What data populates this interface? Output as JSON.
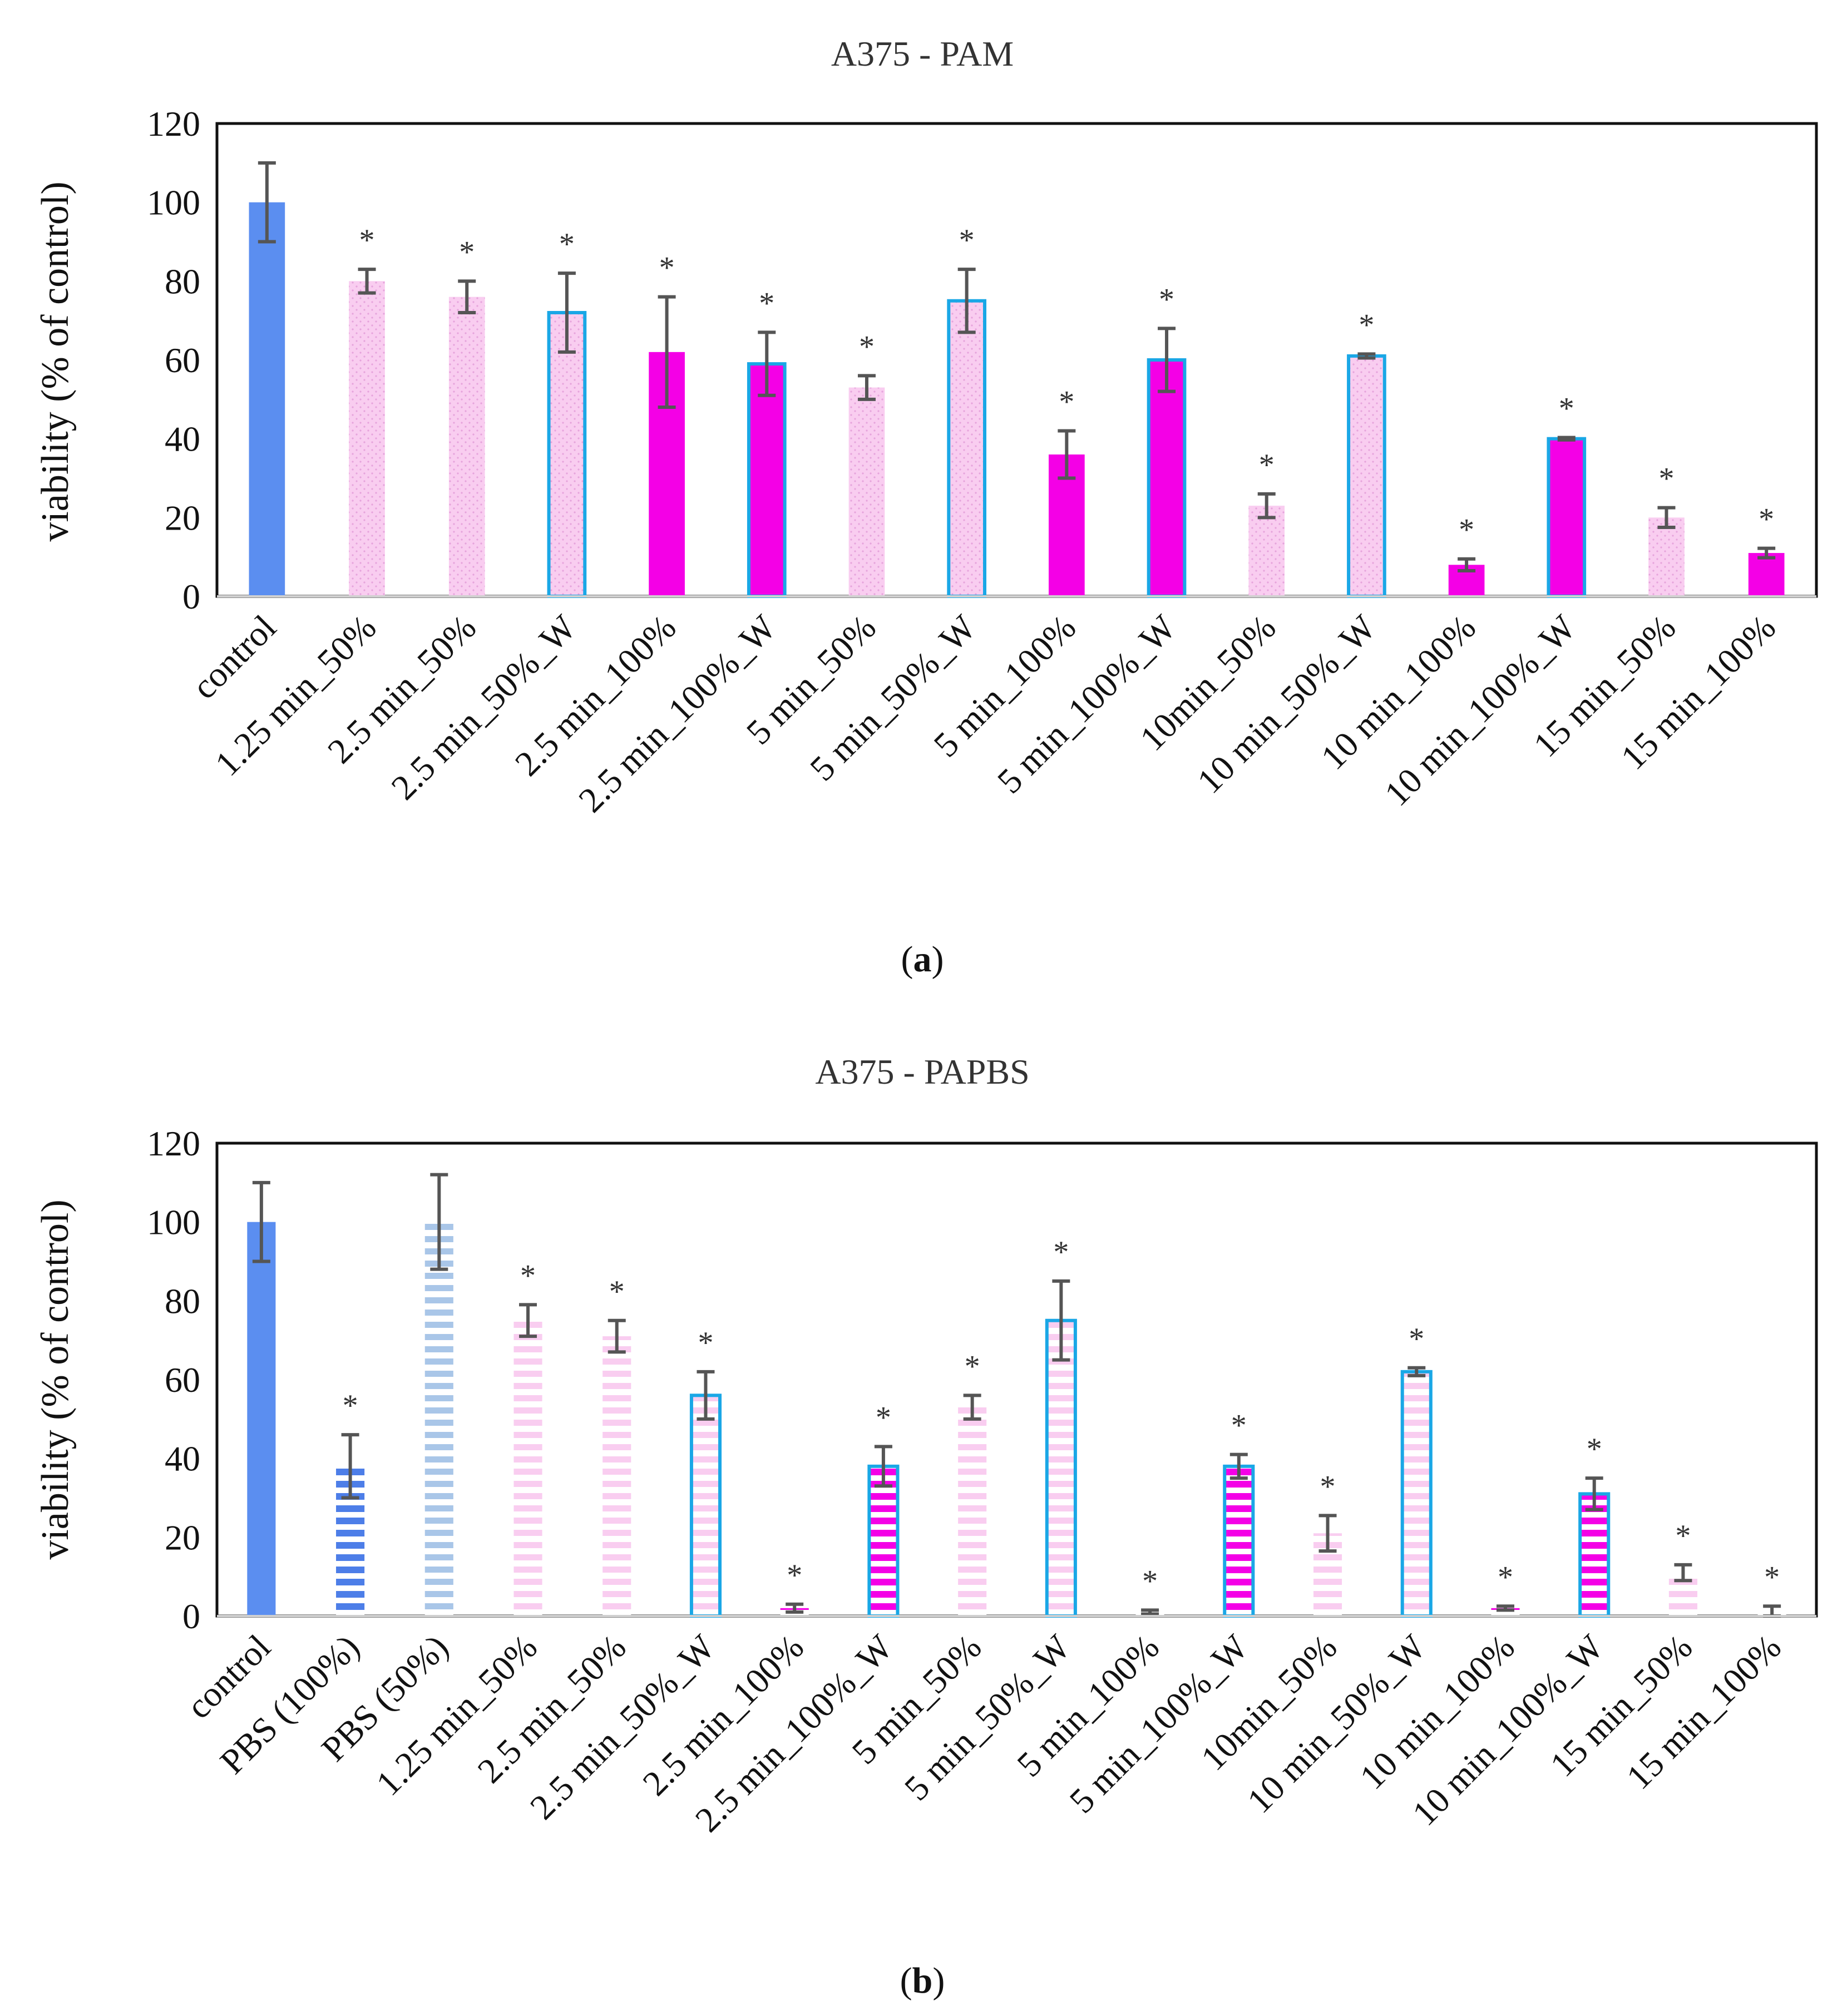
{
  "colors": {
    "control": "#5b8ef0",
    "pbs100": "#4d7ee8",
    "pbs50": "#a9c6e8",
    "pink_light": "#f9cdf0",
    "magenta": "#f400e6",
    "outline_blue": "#1aa7e6",
    "error": "#555555",
    "star": "#333333"
  },
  "chart_data": [
    {
      "id": "a",
      "type": "bar",
      "title": "A375 - PAM",
      "ylabel": "viability (% of control)",
      "xlabel": "",
      "ylim": [
        0,
        120
      ],
      "yticks": [
        0,
        20,
        40,
        60,
        80,
        100,
        120
      ],
      "grid": false,
      "caption_letter": "a",
      "categories": [
        "control",
        "1.25 min_50%",
        "2.5 min_50%",
        "2.5 min_50%_W",
        "2.5 min_100%",
        "2.5 min_100%_W",
        "5 min_50%",
        "5 min_50%_W",
        "5 min_100%",
        "5 min_100%_W",
        "10min_50%",
        "10 min_50%_W",
        "10 min_100%",
        "10 min_100%_W",
        "15 min_50%",
        "15 min_100%"
      ],
      "values": [
        100,
        80,
        76,
        72,
        62,
        59,
        53,
        75,
        36,
        60,
        23,
        61,
        8,
        40,
        20,
        11
      ],
      "errors": [
        10,
        3,
        4,
        10,
        14,
        8,
        3,
        8,
        6,
        8,
        3,
        0.5,
        1.5,
        0.3,
        2.5,
        1.2
      ],
      "significant": [
        false,
        true,
        true,
        true,
        true,
        true,
        true,
        true,
        true,
        true,
        true,
        true,
        true,
        true,
        true,
        true
      ],
      "styles": [
        "control",
        "pink",
        "pink",
        "pink_w",
        "magenta",
        "magenta_w",
        "pink",
        "pink_w",
        "magenta",
        "magenta_w",
        "pink",
        "pink_w",
        "magenta",
        "magenta_w",
        "pink",
        "magenta"
      ],
      "star_symbol": "*"
    },
    {
      "id": "b",
      "type": "bar",
      "title": "A375 - PAPBS",
      "ylabel": "viability (% of control)",
      "xlabel": "",
      "ylim": [
        0,
        120
      ],
      "yticks": [
        0,
        20,
        40,
        60,
        80,
        100,
        120
      ],
      "grid": false,
      "caption_letter": "b",
      "categories": [
        "control",
        "PBS (100%)",
        "PBS (50%)",
        "1.25 min_50%",
        "2.5 min_50%",
        "2.5 min_50%_W",
        "2.5 min_100%",
        "2.5 min_100%_W",
        "5 min_50%",
        "5 min_50%_W",
        "5 min_100%",
        "5 min_100%_W",
        "10min_50%",
        "10 min_50%_W",
        "10 min_100%",
        "10 min_100%_W",
        "15 min_50%",
        "15 min_100%"
      ],
      "values": [
        100,
        38,
        100,
        75,
        71,
        56,
        2,
        38,
        53,
        75,
        1,
        38,
        21,
        62,
        2,
        31,
        11,
        1
      ],
      "errors": [
        10,
        8,
        12,
        4,
        4,
        6,
        1,
        5,
        3,
        10,
        0.5,
        3,
        4.5,
        1,
        0.5,
        4,
        2,
        1.5
      ],
      "significant": [
        false,
        true,
        false,
        true,
        true,
        true,
        true,
        true,
        true,
        true,
        true,
        true,
        true,
        true,
        true,
        true,
        true,
        true
      ],
      "styles": [
        "control",
        "pbs100",
        "pbs50",
        "pink_s",
        "pink_s",
        "pink_s_w",
        "magenta_s",
        "magenta_s_w",
        "pink_s",
        "pink_s_w",
        "magenta_s",
        "magenta_s_w",
        "pink_s",
        "pink_s_w",
        "magenta_s",
        "magenta_s_w",
        "pink_s",
        "magenta_s"
      ],
      "star_symbol": "*"
    }
  ]
}
